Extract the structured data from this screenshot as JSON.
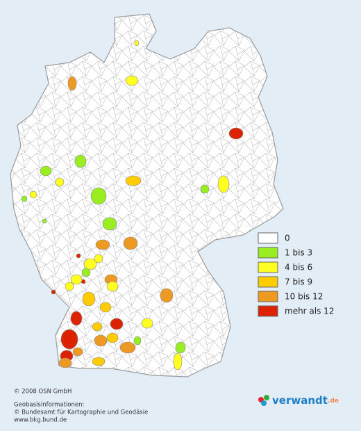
{
  "legend": [
    {
      "label": "0",
      "color": "#ffffff"
    },
    {
      "label": "1 bis 3",
      "color": "#99ee22"
    },
    {
      "label": "4 bis 6",
      "color": "#ffff22"
    },
    {
      "label": "7 bis 9",
      "color": "#ffcc00"
    },
    {
      "label": "10 bis 12",
      "color": "#ee9922"
    },
    {
      "label": "mehr als 12",
      "color": "#dd2200"
    }
  ],
  "credits": {
    "copyright": "© 2008 OSN GmbH",
    "source_title": "Geobasisinformationen:",
    "source": "© Bundesamt für Kartographie und Geodäsie",
    "url": "www.bkg.bund.de"
  },
  "logo": {
    "text": "verwandt",
    "suffix": ".de"
  }
}
